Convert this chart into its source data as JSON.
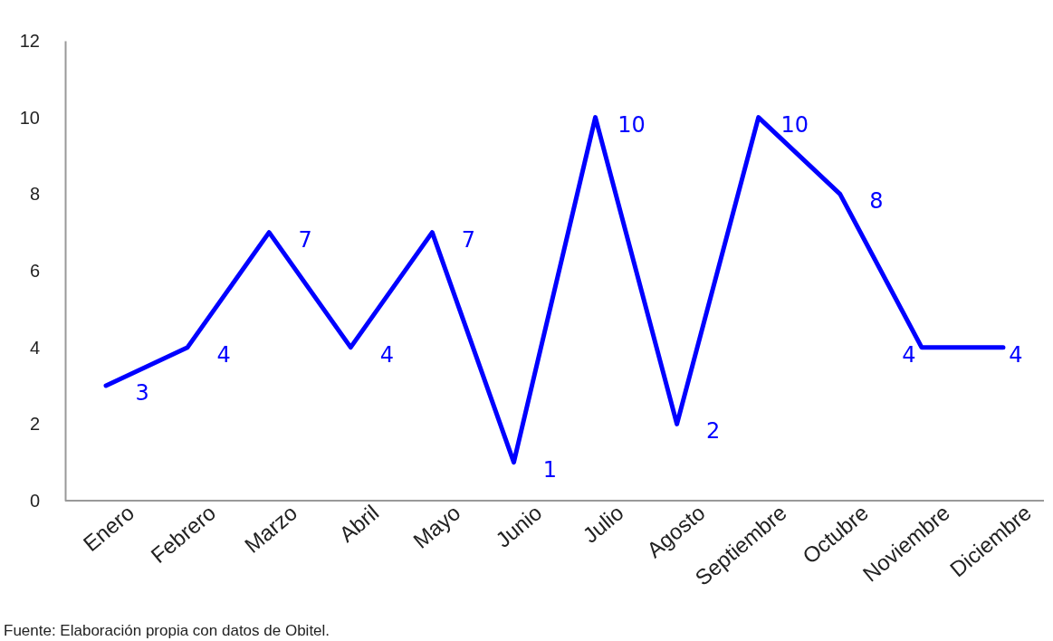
{
  "chart_data": {
    "type": "line",
    "categories": [
      "Enero",
      "Febrero",
      "Marzo",
      "Abril",
      "Mayo",
      "Junio",
      "Julio",
      "Agosto",
      "Septiembre",
      "Octubre",
      "Noviembre",
      "Diciembre"
    ],
    "series": [
      {
        "color": "#0000ff",
        "values": [
          3,
          4,
          7,
          4,
          7,
          1,
          10,
          2,
          10,
          8,
          4,
          4
        ]
      }
    ],
    "ylim": [
      0,
      12
    ],
    "yticks": [
      0,
      2,
      4,
      6,
      8,
      10,
      12
    ],
    "grid": false,
    "marker": "none",
    "line_style": "solid",
    "data_labels": true,
    "annotations": [
      "Fuente: Elaboración propia con datos de Obitel."
    ]
  }
}
